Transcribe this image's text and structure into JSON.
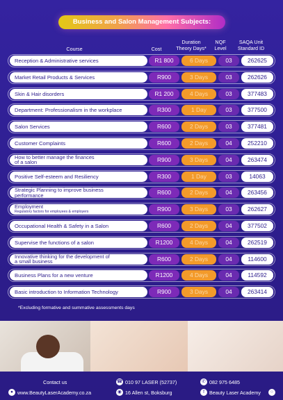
{
  "title": "Business and Salon Management Subjects:",
  "headers": {
    "course": "Course",
    "cost": "Cost",
    "duration_1": "Duration",
    "duration_2": "Theory Days*",
    "nqf_1": "NQF",
    "nqf_2": "Level",
    "saqa_1": "SAQA Unit",
    "saqa_2": "Standard ID"
  },
  "rows": [
    {
      "course": "Reception & Administrative services",
      "cost": "R1 800",
      "duration": "6 Days",
      "nqf": "03",
      "saqa": "262625"
    },
    {
      "course": "Market Retail Products & Services",
      "cost": "R900",
      "duration": "3 Days",
      "nqf": "03",
      "saqa": "262626"
    },
    {
      "course": "Skin & Hair disorders",
      "cost": "R1 200",
      "duration": "4 Days",
      "nqf": "03",
      "saqa": "377483"
    },
    {
      "course": "Department: Professionalism in the workplace",
      "cost": "R300",
      "duration": "1 Day",
      "nqf": "03",
      "saqa": "377500"
    },
    {
      "course": "Salon Services",
      "cost": "R600",
      "duration": "2 Days",
      "nqf": "03",
      "saqa": "377481"
    },
    {
      "course": "Customer Complaints",
      "cost": "R600",
      "duration": "2 Days",
      "nqf": "04",
      "saqa": "252210"
    },
    {
      "course": "How to better manage the finances",
      "course2": "of a salon",
      "cost": "R900",
      "duration": "3 Days",
      "nqf": "04",
      "saqa": "263474"
    },
    {
      "course": "Positive Self-esteem and Resiliency",
      "cost": "R300",
      "duration": "1 Day",
      "nqf": "03",
      "saqa": "14063"
    },
    {
      "course": "Strategic Planning to improve business",
      "course2": "performance",
      "cost": "R600",
      "duration": "2 Days",
      "nqf": "04",
      "saqa": "263456"
    },
    {
      "course": "Employment",
      "course2": "Regulatory factors for employees & employers",
      "cost": "R900",
      "duration": "3 Days",
      "nqf": "03",
      "saqa": "262627"
    },
    {
      "course": "Occupational Health & Safety in a Salon",
      "cost": "R600",
      "duration": "2 Days",
      "nqf": "04",
      "saqa": "377502"
    },
    {
      "course": "Supervise the functions of a salon",
      "cost": "R1200",
      "duration": "4 Days",
      "nqf": "04",
      "saqa": "262519"
    },
    {
      "course": "Innovative thinking for the development of",
      "course2": "a small business",
      "cost": "R600",
      "duration": "2 Days",
      "nqf": "04",
      "saqa": "114600"
    },
    {
      "course": "Business Plans for a new venture",
      "cost": "R1200",
      "duration": "4 Days",
      "nqf": "04",
      "saqa": "114592"
    },
    {
      "course": "Basic introduction to Information Technology",
      "cost": "R900",
      "duration": "3 Days",
      "nqf": "04",
      "saqa": "263414"
    }
  ],
  "note": "*Excluding formative and summative assessments days",
  "contact": {
    "label": "Contact us",
    "website": "www.BeautyLaserAcademy.co.za",
    "phone": "010 97 LASER (52737)",
    "address": "16 Allen st, Boksburg",
    "whatsapp": "082 975 6485",
    "social": "Beauty Laser Academy"
  },
  "colors": {
    "background": "#2e1f8a",
    "cost": "#7d2ab8",
    "duration": "#f39a2a",
    "nqf": "#6a2bb0"
  }
}
